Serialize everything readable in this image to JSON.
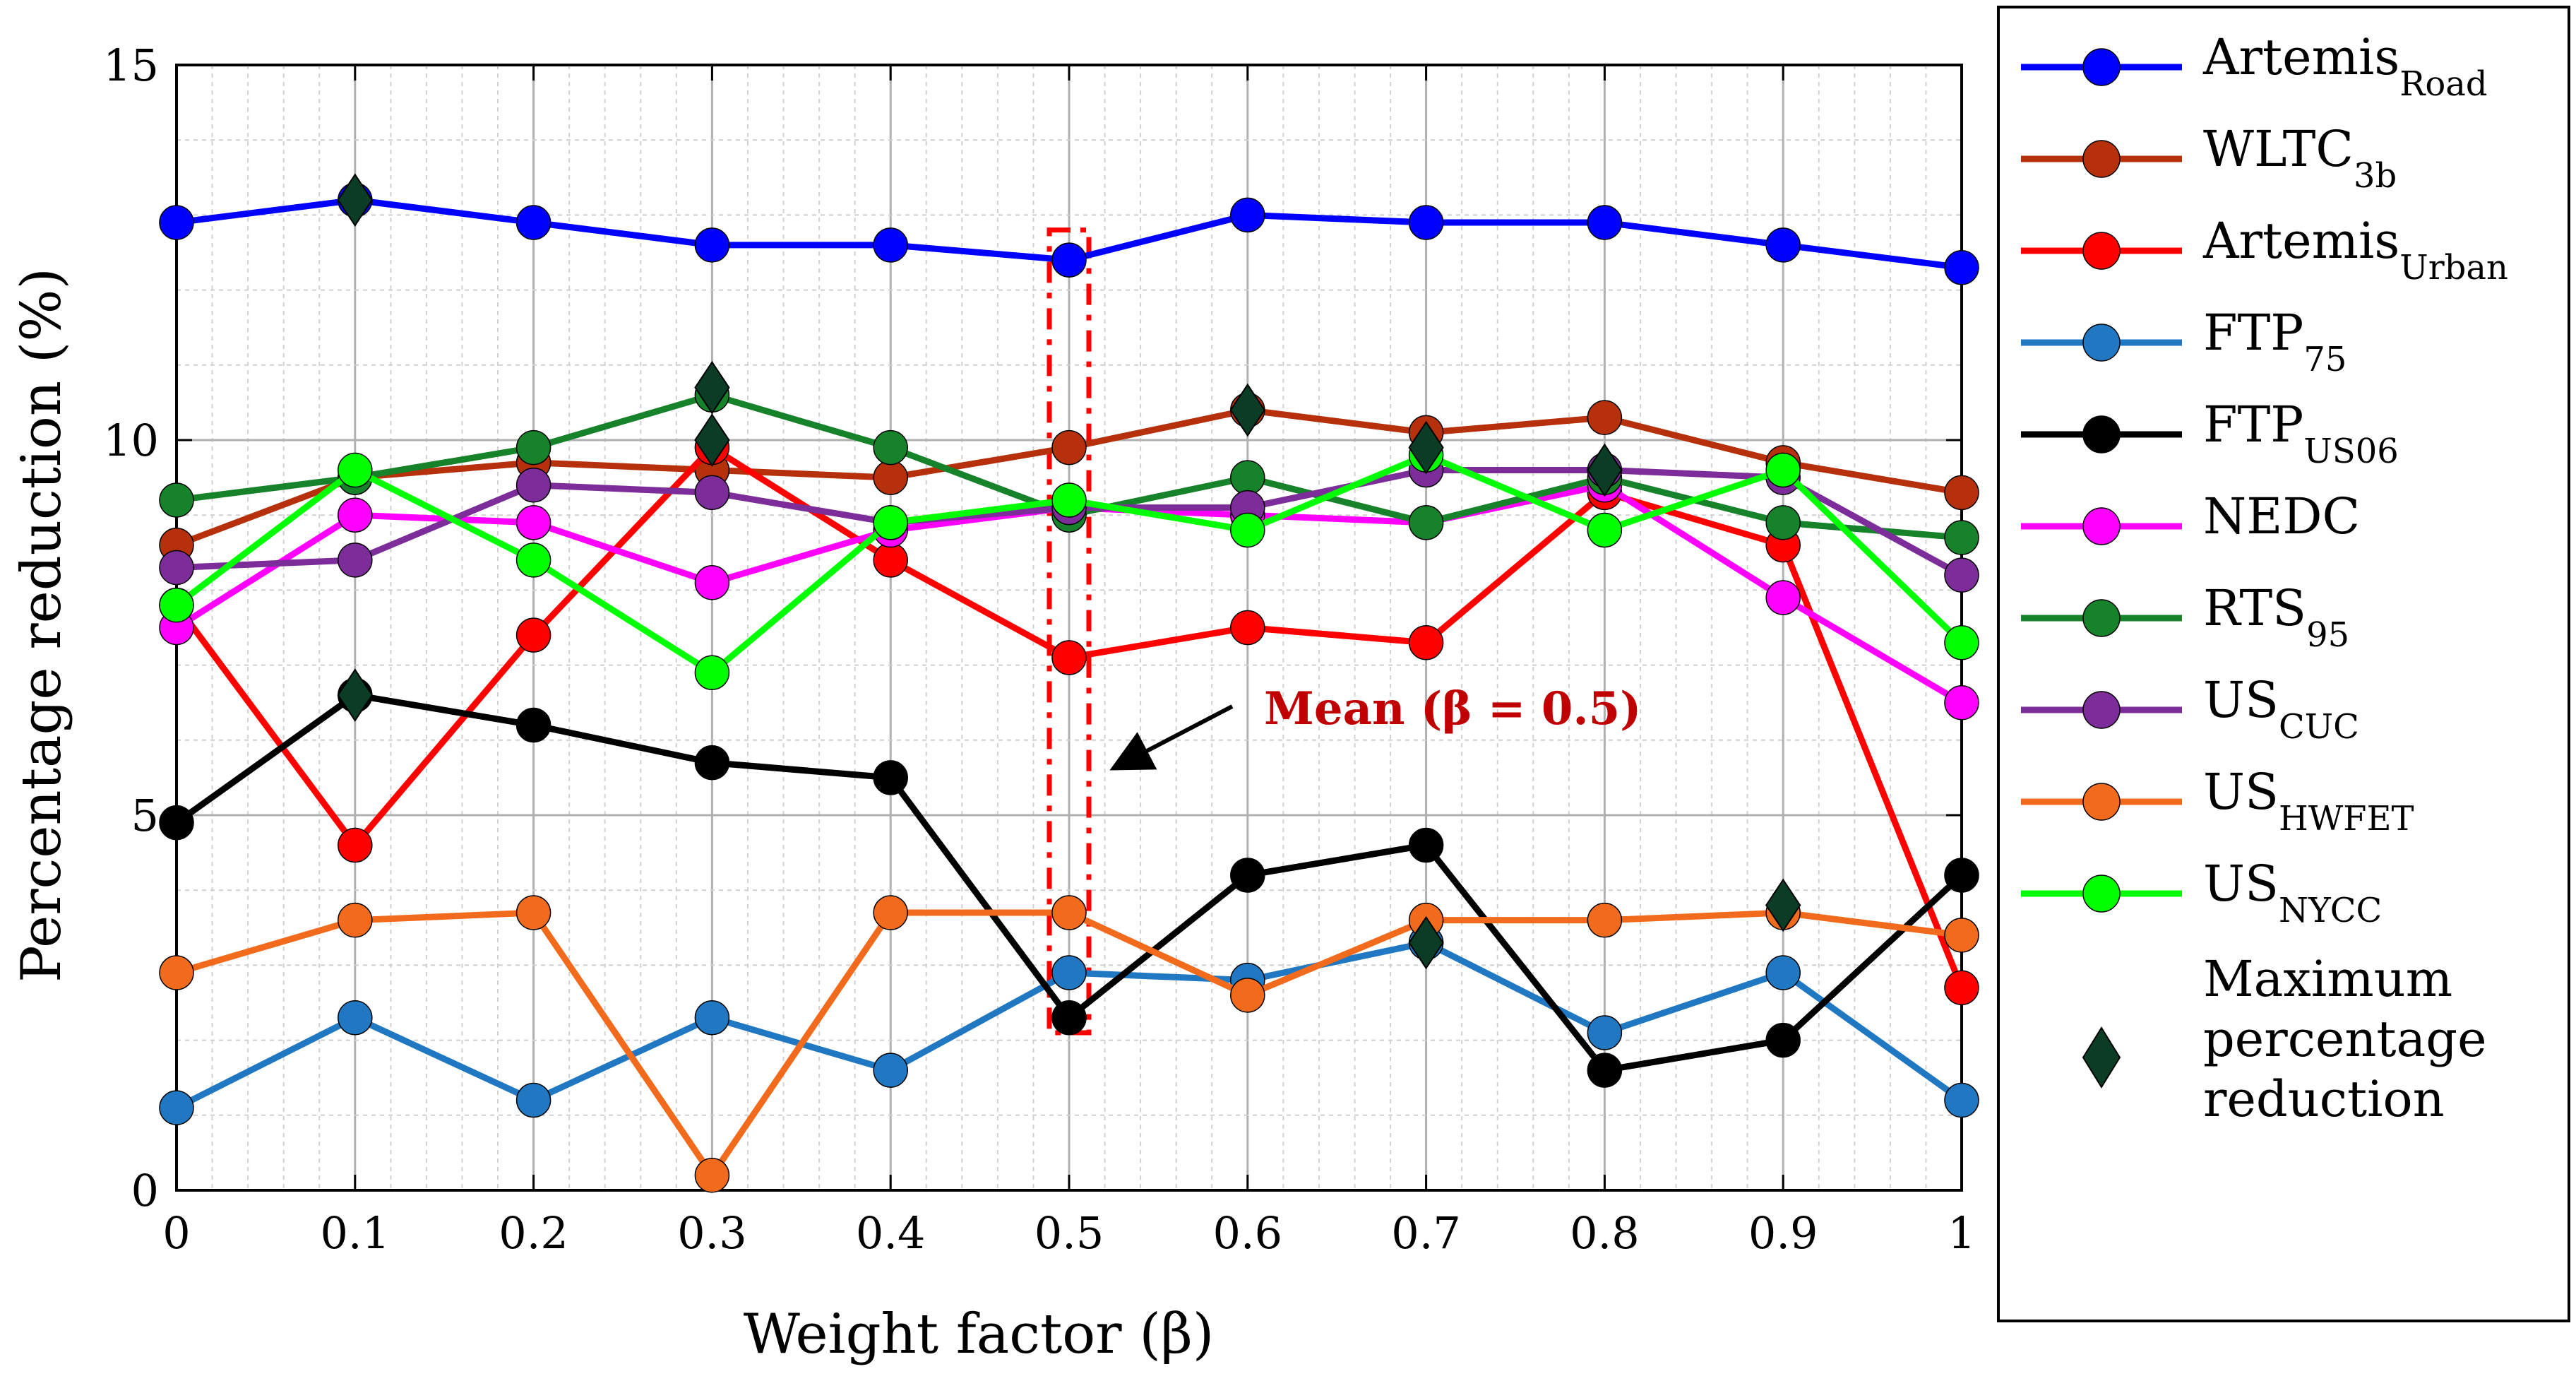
{
  "chart_data": {
    "type": "line",
    "xlabel": "Weight factor (β)",
    "ylabel": "Percentage reduction (%)",
    "xlim": [
      0,
      1
    ],
    "ylim": [
      0,
      15
    ],
    "x": [
      0,
      0.1,
      0.2,
      0.3,
      0.4,
      0.5,
      0.6,
      0.7,
      0.8,
      0.9,
      1
    ],
    "x_tick_labels": [
      "0",
      "0.1",
      "0.2",
      "0.3",
      "0.4",
      "0.5",
      "0.6",
      "0.7",
      "0.8",
      "0.9",
      "1"
    ],
    "y_ticks": [
      0,
      5,
      10,
      15
    ],
    "y_tick_labels": [
      "0",
      "5",
      "10",
      "15"
    ],
    "grid": "major and minor",
    "legend_position": "right",
    "series": [
      {
        "name": "Artemis",
        "subscript": "Road",
        "color": "#0000ff",
        "values": [
          12.9,
          13.2,
          12.9,
          12.6,
          12.6,
          12.4,
          13.0,
          12.9,
          12.9,
          12.6,
          12.3
        ]
      },
      {
        "name": "WLTC",
        "subscript": "3b",
        "color": "#b5300b",
        "values": [
          8.6,
          9.5,
          9.7,
          9.6,
          9.5,
          9.9,
          10.4,
          10.1,
          10.3,
          9.7,
          9.3
        ]
      },
      {
        "name": "Artemis",
        "subscript": "Urban",
        "color": "#ff0000",
        "values": [
          7.8,
          4.6,
          7.4,
          9.9,
          8.4,
          7.1,
          7.5,
          7.3,
          9.3,
          8.6,
          2.7
        ]
      },
      {
        "name": "FTP",
        "subscript": "75",
        "color": "#1f78c1",
        "values": [
          1.1,
          2.3,
          1.2,
          2.3,
          1.6,
          2.9,
          2.8,
          3.3,
          2.1,
          2.9,
          1.2
        ]
      },
      {
        "name": "FTP",
        "subscript": "US06",
        "color": "#000000",
        "values": [
          4.9,
          6.6,
          6.2,
          5.7,
          5.5,
          2.3,
          4.2,
          4.6,
          1.6,
          2.0,
          4.2
        ]
      },
      {
        "name": "NEDC",
        "subscript": "",
        "color": "#ff00ff",
        "values": [
          7.5,
          9.0,
          8.9,
          8.1,
          8.8,
          9.1,
          9.0,
          8.9,
          9.4,
          7.9,
          6.5
        ]
      },
      {
        "name": "RTS",
        "subscript": "95",
        "color": "#16822a",
        "values": [
          9.2,
          9.5,
          9.9,
          10.6,
          9.9,
          9.0,
          9.5,
          8.9,
          9.5,
          8.9,
          8.7
        ]
      },
      {
        "name": "US",
        "subscript": "CUC",
        "color": "#7d2d9a",
        "values": [
          8.3,
          8.4,
          9.4,
          9.3,
          8.9,
          9.1,
          9.1,
          9.6,
          9.6,
          9.5,
          8.2
        ]
      },
      {
        "name": "US",
        "subscript": "HWFET",
        "color": "#f26b1d",
        "values": [
          2.9,
          3.6,
          3.7,
          0.2,
          3.7,
          3.7,
          2.6,
          3.6,
          3.6,
          3.7,
          3.4
        ]
      },
      {
        "name": "US",
        "subscript": "NYCC",
        "color": "#00ff00",
        "values": [
          7.8,
          9.6,
          8.4,
          6.9,
          8.9,
          9.2,
          8.8,
          9.8,
          8.8,
          9.6,
          7.3
        ]
      }
    ],
    "max_markers": {
      "name": "Maximum percentage reduction",
      "label_lines": [
        "Maximum",
        "percentage",
        "reduction"
      ],
      "color": "#0b3d26",
      "points": [
        [
          0.1,
          13.2
        ],
        [
          0.1,
          6.6
        ],
        [
          0.3,
          10.7
        ],
        [
          0.3,
          10.0
        ],
        [
          0.6,
          10.4
        ],
        [
          0.7,
          9.9
        ],
        [
          0.7,
          3.3
        ],
        [
          0.8,
          9.6
        ],
        [
          0.9,
          3.8
        ]
      ]
    },
    "annotation": {
      "text": "Mean (β = 0.5)",
      "x": 0.5,
      "y_range": [
        2.1,
        12.8
      ],
      "color": "#ff0000"
    }
  }
}
